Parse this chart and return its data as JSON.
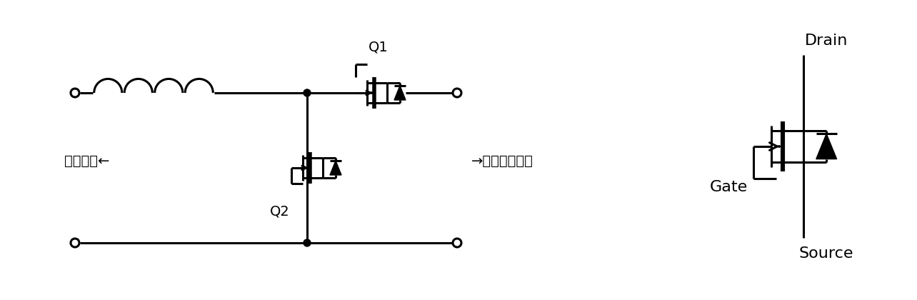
{
  "bg_color": "#ffffff",
  "line_color": "#000000",
  "line_width": 2.2,
  "figsize": [
    12.84,
    4.2
  ],
  "dpi": 100,
  "text_battery_side": "蓄電池側←",
  "text_inverter_side": "→インバータ側",
  "text_Q1": "Q1",
  "text_Q2": "Q2",
  "text_drain": "Drain",
  "text_gate": "Gate",
  "text_source": "Source"
}
